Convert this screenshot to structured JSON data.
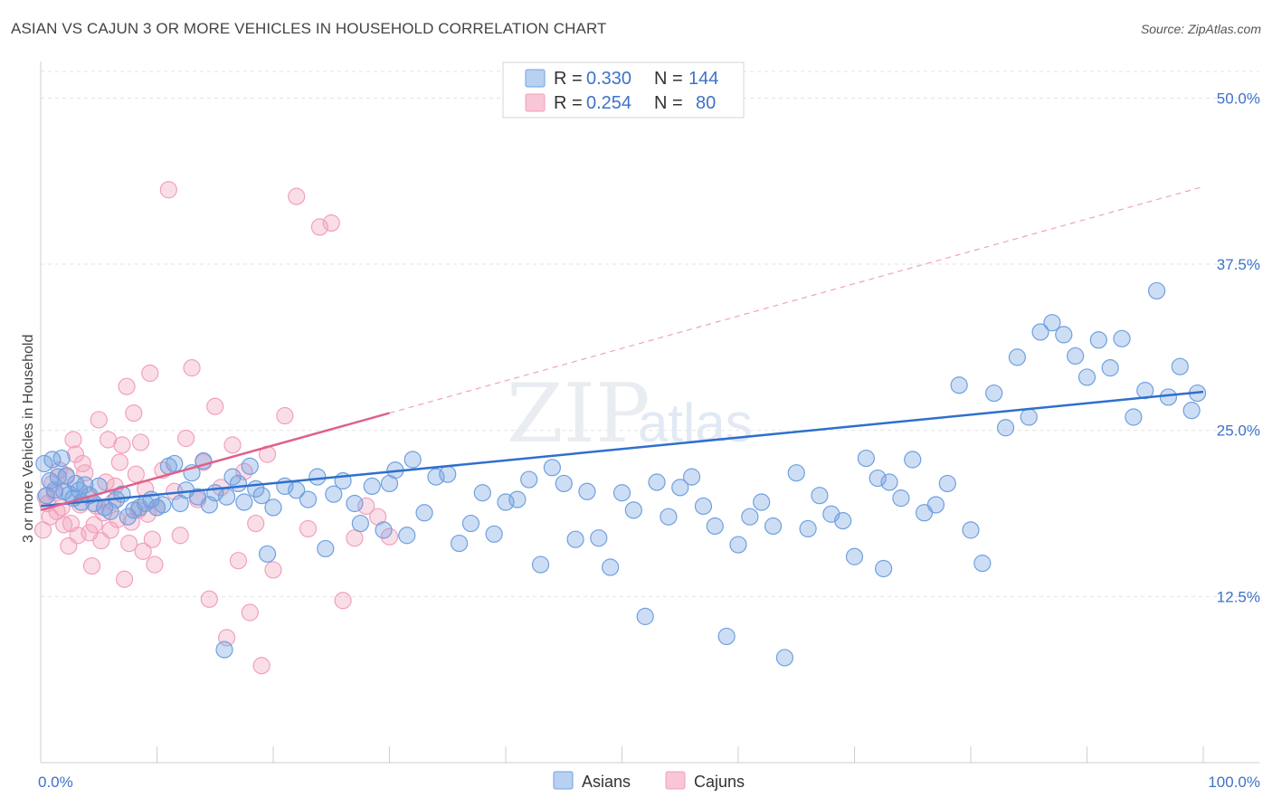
{
  "title": "ASIAN VS CAJUN 3 OR MORE VEHICLES IN HOUSEHOLD CORRELATION CHART",
  "source": "Source: ZipAtlas.com",
  "watermark": {
    "zip": "ZIP",
    "atlas": "atlas"
  },
  "colors": {
    "asian": "#6fa0e0",
    "asian_line": "#2f6fcc",
    "cajun": "#f2a0bb",
    "cajun_line": "#e0608c",
    "tick": "#3d72c9",
    "grid": "#e3e3e3"
  },
  "chart_data": {
    "type": "scatter",
    "xlabel": "",
    "ylabel": "3 or more Vehicles in Household",
    "xlim": [
      0,
      100
    ],
    "ylim": [
      0,
      52
    ],
    "x_tick_labels": [
      "0.0%",
      "100.0%"
    ],
    "y_ticks": [
      12.5,
      25.0,
      37.5,
      50.0
    ],
    "y_tick_labels": [
      "12.5%",
      "25.0%",
      "37.5%",
      "50.0%"
    ],
    "grid": true,
    "legend_position": "top-center",
    "legend": [
      {
        "r_label": "R =",
        "r_value": "0.330",
        "n_label": "N =",
        "n_value": "144"
      },
      {
        "r_label": "R =",
        "r_value": "0.254",
        "n_label": "N =",
        "n_value": "80"
      }
    ],
    "series": [
      {
        "name": "Asians",
        "trend": {
          "x": [
            0,
            100
          ],
          "y": [
            19.3,
            27.9
          ]
        },
        "points": [
          [
            0.3,
            22.5
          ],
          [
            0.5,
            20.1
          ],
          [
            0.8,
            21.2
          ],
          [
            1.0,
            22.8
          ],
          [
            1.2,
            20.5
          ],
          [
            1.5,
            21.5
          ],
          [
            1.8,
            22.9
          ],
          [
            2.0,
            20.4
          ],
          [
            2.2,
            21.6
          ],
          [
            2.5,
            20.2
          ],
          [
            2.8,
            19.9
          ],
          [
            3.0,
            21.0
          ],
          [
            3.3,
            20.5
          ],
          [
            3.5,
            19.6
          ],
          [
            3.8,
            20.9
          ],
          [
            4.2,
            20.1
          ],
          [
            4.6,
            19.5
          ],
          [
            5.0,
            20.8
          ],
          [
            5.5,
            19.2
          ],
          [
            6.0,
            18.9
          ],
          [
            6.5,
            19.8
          ],
          [
            7.0,
            20.2
          ],
          [
            7.5,
            18.5
          ],
          [
            8.0,
            19.0
          ],
          [
            8.5,
            19.2
          ],
          [
            9.0,
            19.5
          ],
          [
            9.5,
            19.8
          ],
          [
            10.0,
            19.2
          ],
          [
            10.5,
            19.4
          ],
          [
            11.0,
            22.3
          ],
          [
            11.5,
            22.5
          ],
          [
            12.0,
            19.5
          ],
          [
            12.5,
            20.5
          ],
          [
            13.0,
            21.8
          ],
          [
            13.5,
            20.0
          ],
          [
            14.0,
            22.7
          ],
          [
            14.5,
            19.4
          ],
          [
            15.0,
            20.3
          ],
          [
            15.8,
            8.5
          ],
          [
            16.0,
            20.0
          ],
          [
            16.5,
            21.5
          ],
          [
            17.0,
            21.0
          ],
          [
            17.5,
            19.6
          ],
          [
            18.0,
            22.3
          ],
          [
            18.5,
            20.6
          ],
          [
            19.0,
            20.1
          ],
          [
            19.5,
            15.7
          ],
          [
            20.0,
            19.2
          ],
          [
            21.0,
            20.8
          ],
          [
            22.0,
            20.5
          ],
          [
            23.0,
            19.8
          ],
          [
            23.8,
            21.5
          ],
          [
            24.5,
            16.1
          ],
          [
            25.2,
            20.2
          ],
          [
            26.0,
            21.2
          ],
          [
            27.0,
            19.5
          ],
          [
            27.5,
            18.0
          ],
          [
            28.5,
            20.8
          ],
          [
            29.5,
            17.5
          ],
          [
            30.0,
            21.0
          ],
          [
            30.5,
            22.0
          ],
          [
            31.5,
            17.1
          ],
          [
            32.0,
            22.8
          ],
          [
            33.0,
            18.8
          ],
          [
            34.0,
            21.5
          ],
          [
            35.0,
            21.7
          ],
          [
            36.0,
            16.5
          ],
          [
            37.0,
            18.0
          ],
          [
            38.0,
            20.3
          ],
          [
            39.0,
            17.2
          ],
          [
            40.0,
            19.6
          ],
          [
            41.0,
            19.8
          ],
          [
            42.0,
            21.3
          ],
          [
            43.0,
            14.9
          ],
          [
            44.0,
            22.2
          ],
          [
            45.0,
            21.0
          ],
          [
            46.0,
            16.8
          ],
          [
            47.0,
            20.4
          ],
          [
            48.0,
            16.9
          ],
          [
            49.0,
            14.7
          ],
          [
            50.0,
            20.3
          ],
          [
            51.0,
            19.0
          ],
          [
            52.0,
            11.0
          ],
          [
            53.0,
            21.1
          ],
          [
            54.0,
            18.5
          ],
          [
            55.0,
            20.7
          ],
          [
            56.0,
            21.5
          ],
          [
            57.0,
            19.3
          ],
          [
            58.0,
            17.8
          ],
          [
            59.0,
            9.5
          ],
          [
            60.0,
            16.4
          ],
          [
            61.0,
            18.5
          ],
          [
            62.0,
            19.6
          ],
          [
            63.0,
            17.8
          ],
          [
            64.0,
            7.9
          ],
          [
            65.0,
            21.8
          ],
          [
            66.0,
            17.6
          ],
          [
            67.0,
            20.1
          ],
          [
            68.0,
            18.7
          ],
          [
            69.0,
            18.2
          ],
          [
            70.0,
            15.5
          ],
          [
            71.0,
            22.9
          ],
          [
            72.0,
            21.4
          ],
          [
            72.5,
            14.6
          ],
          [
            73.0,
            21.1
          ],
          [
            74.0,
            19.9
          ],
          [
            75.0,
            22.8
          ],
          [
            76.0,
            18.8
          ],
          [
            77.0,
            19.4
          ],
          [
            78.0,
            21.0
          ],
          [
            79.0,
            28.4
          ],
          [
            80.0,
            17.5
          ],
          [
            81.0,
            15.0
          ],
          [
            82.0,
            27.8
          ],
          [
            83.0,
            25.2
          ],
          [
            84.0,
            30.5
          ],
          [
            85.0,
            26.0
          ],
          [
            86.0,
            32.4
          ],
          [
            87.0,
            33.1
          ],
          [
            88.0,
            32.2
          ],
          [
            89.0,
            30.6
          ],
          [
            90.0,
            29.0
          ],
          [
            91.0,
            31.8
          ],
          [
            92.0,
            29.7
          ],
          [
            93.0,
            31.9
          ],
          [
            94.0,
            26.0
          ],
          [
            95.0,
            28.0
          ],
          [
            96.0,
            35.5
          ],
          [
            97.0,
            27.5
          ],
          [
            98.0,
            29.8
          ],
          [
            99.0,
            26.5
          ],
          [
            99.5,
            27.8
          ]
        ],
        "note_points": "approximate values read off the plot"
      },
      {
        "name": "Cajuns",
        "trend": {
          "x": [
            0,
            30
          ],
          "y": [
            19.0,
            26.3
          ]
        },
        "points": [
          [
            0.2,
            17.5
          ],
          [
            0.4,
            20.0
          ],
          [
            0.6,
            19.5
          ],
          [
            0.8,
            18.5
          ],
          [
            1.0,
            21.0
          ],
          [
            1.2,
            20.3
          ],
          [
            1.4,
            18.9
          ],
          [
            1.6,
            22.0
          ],
          [
            1.8,
            19.2
          ],
          [
            2.0,
            17.9
          ],
          [
            2.2,
            21.5
          ],
          [
            2.4,
            16.3
          ],
          [
            2.6,
            18.0
          ],
          [
            2.8,
            24.3
          ],
          [
            3.0,
            23.2
          ],
          [
            3.2,
            17.1
          ],
          [
            3.4,
            19.4
          ],
          [
            3.6,
            22.5
          ],
          [
            3.8,
            21.8
          ],
          [
            4.0,
            20.2
          ],
          [
            4.2,
            17.3
          ],
          [
            4.4,
            14.8
          ],
          [
            4.6,
            17.9
          ],
          [
            4.8,
            19.3
          ],
          [
            5.0,
            25.8
          ],
          [
            5.2,
            16.7
          ],
          [
            5.4,
            18.8
          ],
          [
            5.6,
            21.1
          ],
          [
            5.8,
            24.3
          ],
          [
            6.0,
            17.5
          ],
          [
            6.2,
            19.6
          ],
          [
            6.4,
            20.8
          ],
          [
            6.6,
            18.3
          ],
          [
            6.8,
            22.6
          ],
          [
            7.0,
            23.9
          ],
          [
            7.2,
            13.8
          ],
          [
            7.4,
            28.3
          ],
          [
            7.6,
            16.5
          ],
          [
            7.8,
            18.1
          ],
          [
            8.0,
            26.3
          ],
          [
            8.2,
            21.7
          ],
          [
            8.4,
            19.0
          ],
          [
            8.6,
            24.1
          ],
          [
            8.8,
            15.9
          ],
          [
            9.0,
            20.6
          ],
          [
            9.2,
            18.7
          ],
          [
            9.4,
            29.3
          ],
          [
            9.6,
            16.8
          ],
          [
            9.8,
            14.9
          ],
          [
            10.0,
            19.2
          ],
          [
            10.5,
            22.0
          ],
          [
            11.0,
            43.1
          ],
          [
            11.5,
            20.4
          ],
          [
            12.0,
            17.1
          ],
          [
            12.5,
            24.4
          ],
          [
            13.0,
            29.7
          ],
          [
            13.5,
            19.8
          ],
          [
            14.0,
            22.6
          ],
          [
            14.5,
            12.3
          ],
          [
            15.0,
            26.8
          ],
          [
            15.5,
            20.7
          ],
          [
            16.0,
            9.4
          ],
          [
            16.5,
            23.9
          ],
          [
            17.0,
            15.2
          ],
          [
            17.5,
            21.9
          ],
          [
            18.0,
            11.3
          ],
          [
            18.5,
            18.0
          ],
          [
            19.0,
            7.3
          ],
          [
            19.5,
            23.2
          ],
          [
            20.0,
            14.5
          ],
          [
            21.0,
            26.1
          ],
          [
            22.0,
            42.6
          ],
          [
            23.0,
            17.6
          ],
          [
            24.0,
            40.3
          ],
          [
            25.0,
            40.6
          ],
          [
            26.0,
            12.2
          ],
          [
            27.0,
            16.9
          ],
          [
            28.0,
            19.3
          ],
          [
            29.0,
            18.5
          ],
          [
            30.0,
            17.0
          ]
        ]
      }
    ]
  },
  "bottom_legend": [
    {
      "label": "Asians"
    },
    {
      "label": "Cajuns"
    }
  ]
}
